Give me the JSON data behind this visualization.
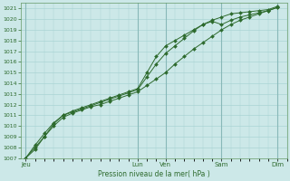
{
  "bg_color": "#cce8e8",
  "grid_color": "#aad4d4",
  "line_color": "#2d6a2d",
  "marker_color": "#2d6a2d",
  "xlabel": "Pression niveau de la mer( hPa )",
  "ylim": [
    1007,
    1021.5
  ],
  "yticks": [
    1007,
    1008,
    1009,
    1010,
    1011,
    1012,
    1013,
    1014,
    1015,
    1016,
    1017,
    1018,
    1019,
    1020,
    1021
  ],
  "day_labels": [
    "Jeu",
    "Lun",
    "Ven",
    "Sam",
    "Dim"
  ],
  "day_positions": [
    0,
    12,
    15,
    21,
    27
  ],
  "xlim": [
    -0.5,
    28
  ],
  "series1_x": [
    0,
    1,
    2,
    3,
    4,
    5,
    6,
    7,
    8,
    9,
    10,
    11,
    12,
    13,
    14,
    15,
    16,
    17,
    18,
    19,
    20,
    21,
    22,
    23,
    24,
    25,
    26,
    27
  ],
  "series1_y": [
    1007.0,
    1008.0,
    1009.0,
    1010.0,
    1010.8,
    1011.2,
    1011.5,
    1011.8,
    1012.0,
    1012.3,
    1012.6,
    1012.9,
    1013.2,
    1013.8,
    1014.4,
    1015.0,
    1015.8,
    1016.5,
    1017.2,
    1017.8,
    1018.4,
    1019.0,
    1019.5,
    1019.9,
    1020.2,
    1020.5,
    1020.8,
    1021.1
  ],
  "series2_x": [
    0,
    1,
    2,
    3,
    4,
    5,
    6,
    7,
    8,
    9,
    10,
    11,
    12,
    13,
    14,
    15,
    16,
    17,
    18,
    19,
    20,
    21,
    22,
    23,
    24,
    25,
    26,
    27
  ],
  "series2_y": [
    1007.0,
    1008.2,
    1009.3,
    1010.3,
    1011.0,
    1011.4,
    1011.7,
    1012.0,
    1012.3,
    1012.6,
    1012.9,
    1013.2,
    1013.5,
    1015.0,
    1016.5,
    1017.5,
    1018.0,
    1018.5,
    1019.0,
    1019.5,
    1019.8,
    1019.5,
    1019.9,
    1020.2,
    1020.4,
    1020.6,
    1020.8,
    1021.1
  ],
  "series3_x": [
    0,
    1,
    2,
    3,
    4,
    5,
    6,
    7,
    8,
    9,
    10,
    11,
    12,
    13,
    14,
    15,
    16,
    17,
    18,
    19,
    20,
    21,
    22,
    23,
    24,
    25,
    26,
    27
  ],
  "series3_y": [
    1007.0,
    1007.8,
    1009.0,
    1010.2,
    1011.0,
    1011.3,
    1011.6,
    1011.9,
    1012.2,
    1012.5,
    1012.8,
    1013.1,
    1013.4,
    1014.6,
    1015.8,
    1016.8,
    1017.5,
    1018.2,
    1018.9,
    1019.5,
    1019.9,
    1020.2,
    1020.5,
    1020.6,
    1020.7,
    1020.8,
    1020.9,
    1021.2
  ]
}
